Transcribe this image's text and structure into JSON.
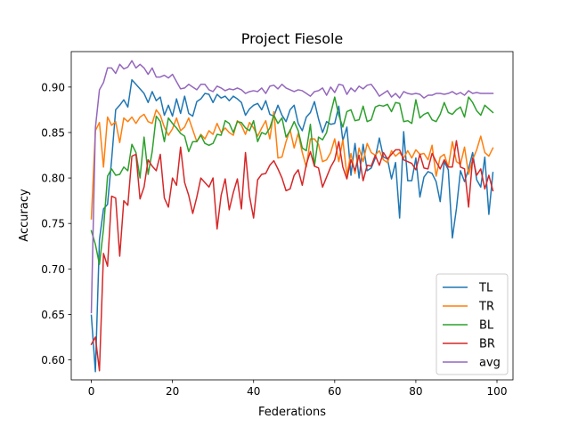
{
  "chart_data": {
    "type": "line",
    "title": "Project Fiesole",
    "xlabel": "Federations",
    "ylabel": "Accuracy",
    "xlim": [
      -4.95,
      103.95
    ],
    "ylim": [
      0.578,
      0.939
    ],
    "xticks": [
      0,
      20,
      40,
      60,
      80,
      100
    ],
    "yticks": [
      0.6,
      0.65,
      0.7,
      0.75,
      0.8,
      0.85,
      0.9
    ],
    "xtick_labels": [
      "0",
      "20",
      "40",
      "60",
      "80",
      "100"
    ],
    "ytick_labels": [
      "0.60",
      "0.65",
      "0.70",
      "0.75",
      "0.80",
      "0.85",
      "0.90"
    ],
    "grid": false,
    "legend_position": "lower-right",
    "series": [
      {
        "name": "TL",
        "color": "#1f77b4",
        "values": [
          0.649,
          0.587,
          0.732,
          0.766,
          0.771,
          0.82,
          0.875,
          0.88,
          0.886,
          0.878,
          0.908,
          0.903,
          0.898,
          0.893,
          0.883,
          0.895,
          0.885,
          0.889,
          0.869,
          0.88,
          0.868,
          0.887,
          0.871,
          0.89,
          0.871,
          0.868,
          0.884,
          0.887,
          0.893,
          0.892,
          0.883,
          0.892,
          0.888,
          0.89,
          0.885,
          0.89,
          0.887,
          0.883,
          0.869,
          0.876,
          0.88,
          0.882,
          0.875,
          0.885,
          0.87,
          0.868,
          0.88,
          0.869,
          0.862,
          0.875,
          0.88,
          0.86,
          0.852,
          0.867,
          0.872,
          0.884,
          0.865,
          0.85,
          0.862,
          0.859,
          0.86,
          0.879,
          0.841,
          0.856,
          0.803,
          0.838,
          0.8,
          0.837,
          0.808,
          0.811,
          0.822,
          0.844,
          0.823,
          0.821,
          0.799,
          0.817,
          0.756,
          0.851,
          0.797,
          0.797,
          0.822,
          0.779,
          0.801,
          0.807,
          0.805,
          0.796,
          0.774,
          0.818,
          0.809,
          0.734,
          0.766,
          0.808,
          0.796,
          0.81,
          0.828,
          0.798,
          0.79,
          0.823,
          0.76,
          0.806
        ]
      },
      {
        "name": "TR",
        "color": "#ff7f0e",
        "values": [
          0.755,
          0.852,
          0.861,
          0.812,
          0.867,
          0.858,
          0.862,
          0.839,
          0.866,
          0.862,
          0.867,
          0.86,
          0.867,
          0.87,
          0.862,
          0.86,
          0.875,
          0.869,
          0.856,
          0.847,
          0.854,
          0.866,
          0.852,
          0.856,
          0.866,
          0.853,
          0.84,
          0.848,
          0.843,
          0.852,
          0.848,
          0.86,
          0.85,
          0.855,
          0.85,
          0.847,
          0.863,
          0.858,
          0.848,
          0.861,
          0.855,
          0.846,
          0.855,
          0.863,
          0.843,
          0.873,
          0.822,
          0.823,
          0.84,
          0.853,
          0.833,
          0.849,
          0.828,
          0.812,
          0.843,
          0.843,
          0.837,
          0.818,
          0.82,
          0.828,
          0.843,
          0.818,
          0.842,
          0.803,
          0.827,
          0.805,
          0.833,
          0.818,
          0.838,
          0.828,
          0.825,
          0.83,
          0.82,
          0.817,
          0.83,
          0.824,
          0.828,
          0.822,
          0.83,
          0.822,
          0.831,
          0.826,
          0.827,
          0.82,
          0.836,
          0.802,
          0.823,
          0.826,
          0.812,
          0.84,
          0.818,
          0.815,
          0.834,
          0.804,
          0.82,
          0.831,
          0.846,
          0.828,
          0.824,
          0.833
        ]
      },
      {
        "name": "BL",
        "color": "#2ca02c",
        "values": [
          0.742,
          0.727,
          0.705,
          0.744,
          0.802,
          0.81,
          0.803,
          0.804,
          0.812,
          0.808,
          0.837,
          0.828,
          0.8,
          0.845,
          0.804,
          0.829,
          0.868,
          0.862,
          0.84,
          0.866,
          0.86,
          0.855,
          0.849,
          0.846,
          0.829,
          0.84,
          0.84,
          0.847,
          0.838,
          0.836,
          0.838,
          0.848,
          0.847,
          0.863,
          0.86,
          0.85,
          0.862,
          0.861,
          0.855,
          0.852,
          0.863,
          0.84,
          0.85,
          0.848,
          0.855,
          0.869,
          0.86,
          0.866,
          0.845,
          0.852,
          0.862,
          0.852,
          0.833,
          0.83,
          0.859,
          0.813,
          0.845,
          0.842,
          0.85,
          0.871,
          0.889,
          0.869,
          0.856,
          0.873,
          0.875,
          0.863,
          0.864,
          0.879,
          0.862,
          0.864,
          0.878,
          0.88,
          0.879,
          0.881,
          0.873,
          0.883,
          0.882,
          0.862,
          0.863,
          0.86,
          0.886,
          0.866,
          0.87,
          0.872,
          0.864,
          0.862,
          0.87,
          0.883,
          0.872,
          0.87,
          0.875,
          0.878,
          0.867,
          0.889,
          0.883,
          0.874,
          0.869,
          0.88,
          0.876,
          0.872
        ]
      },
      {
        "name": "BR",
        "color": "#d62728",
        "values": [
          0.617,
          0.625,
          0.588,
          0.717,
          0.703,
          0.78,
          0.778,
          0.714,
          0.775,
          0.77,
          0.824,
          0.826,
          0.777,
          0.79,
          0.82,
          0.813,
          0.808,
          0.826,
          0.778,
          0.768,
          0.8,
          0.792,
          0.834,
          0.795,
          0.781,
          0.761,
          0.779,
          0.8,
          0.795,
          0.79,
          0.8,
          0.744,
          0.781,
          0.799,
          0.765,
          0.784,
          0.799,
          0.766,
          0.828,
          0.78,
          0.756,
          0.798,
          0.804,
          0.805,
          0.814,
          0.819,
          0.81,
          0.8,
          0.786,
          0.788,
          0.803,
          0.809,
          0.792,
          0.815,
          0.829,
          0.813,
          0.811,
          0.79,
          0.801,
          0.812,
          0.82,
          0.84,
          0.812,
          0.799,
          0.82,
          0.808,
          0.825,
          0.797,
          0.814,
          0.813,
          0.825,
          0.814,
          0.828,
          0.821,
          0.826,
          0.831,
          0.831,
          0.82,
          0.818,
          0.816,
          0.809,
          0.826,
          0.811,
          0.81,
          0.827,
          0.818,
          0.81,
          0.82,
          0.812,
          0.812,
          0.841,
          0.812,
          0.81,
          0.768,
          0.822,
          0.803,
          0.81,
          0.788,
          0.803,
          0.786
        ]
      },
      {
        "name": "avg",
        "color": "#9467bd",
        "values": [
          0.652,
          0.855,
          0.897,
          0.905,
          0.921,
          0.921,
          0.915,
          0.925,
          0.92,
          0.922,
          0.929,
          0.921,
          0.925,
          0.921,
          0.914,
          0.921,
          0.911,
          0.911,
          0.913,
          0.91,
          0.914,
          0.906,
          0.898,
          0.899,
          0.903,
          0.9,
          0.897,
          0.903,
          0.903,
          0.897,
          0.895,
          0.901,
          0.899,
          0.896,
          0.898,
          0.897,
          0.899,
          0.897,
          0.893,
          0.895,
          0.896,
          0.895,
          0.899,
          0.893,
          0.901,
          0.902,
          0.898,
          0.903,
          0.899,
          0.897,
          0.895,
          0.897,
          0.896,
          0.893,
          0.89,
          0.895,
          0.896,
          0.899,
          0.891,
          0.9,
          0.894,
          0.903,
          0.902,
          0.892,
          0.899,
          0.895,
          0.901,
          0.898,
          0.902,
          0.903,
          0.897,
          0.89,
          0.893,
          0.896,
          0.889,
          0.893,
          0.888,
          0.895,
          0.893,
          0.892,
          0.893,
          0.892,
          0.888,
          0.891,
          0.891,
          0.893,
          0.893,
          0.892,
          0.893,
          0.895,
          0.892,
          0.894,
          0.891,
          0.896,
          0.893,
          0.894,
          0.893,
          0.893,
          0.893,
          0.893
        ]
      }
    ]
  }
}
